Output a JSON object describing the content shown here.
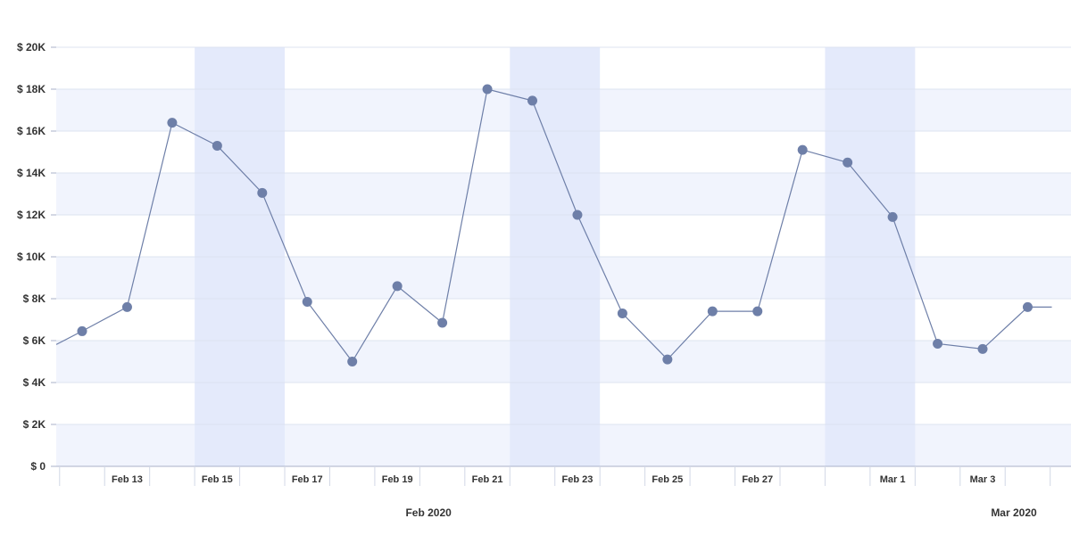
{
  "chart_data": {
    "type": "line",
    "title": "",
    "xlabel": "",
    "ylabel": "",
    "ylim": [
      0,
      20000
    ],
    "y_ticks": [
      0,
      2000,
      4000,
      6000,
      8000,
      10000,
      12000,
      14000,
      16000,
      18000,
      20000
    ],
    "y_tick_labels": [
      "$ 0",
      "$ 2K",
      "$ 4K",
      "$ 6K",
      "$ 8K",
      "$ 10K",
      "$ 12K",
      "$ 14K",
      "$ 16K",
      "$ 18K",
      "$ 20K"
    ],
    "x_range": [
      "2020-02-11",
      "2020-03-05"
    ],
    "x_tick_labels": [
      {
        "date": "2020-02-13",
        "label": "Feb 13"
      },
      {
        "date": "2020-02-15",
        "label": "Feb 15"
      },
      {
        "date": "2020-02-17",
        "label": "Feb 17"
      },
      {
        "date": "2020-02-19",
        "label": "Feb 19"
      },
      {
        "date": "2020-02-21",
        "label": "Feb 21"
      },
      {
        "date": "2020-02-23",
        "label": "Feb 23"
      },
      {
        "date": "2020-02-25",
        "label": "Feb 25"
      },
      {
        "date": "2020-02-27",
        "label": "Feb 27"
      },
      {
        "date": "2020-03-01",
        "label": "Mar 1"
      },
      {
        "date": "2020-03-03",
        "label": "Mar 3"
      }
    ],
    "month_labels": [
      {
        "date": "2020-02-19",
        "label": "Feb 2020"
      },
      {
        "date": "2020-03-03",
        "label": "Mar 2020"
      }
    ],
    "weekend_bands": [
      [
        "2020-02-15",
        "2020-02-17"
      ],
      [
        "2020-02-22",
        "2020-02-24"
      ],
      [
        "2020-02-29",
        "2020-03-02"
      ]
    ],
    "grid": true,
    "series": [
      {
        "color": "#6e7fa8",
        "points": [
          {
            "x": "2020-02-12",
            "y": 6450
          },
          {
            "x": "2020-02-13",
            "y": 7600
          },
          {
            "x": "2020-02-14",
            "y": 16400
          },
          {
            "x": "2020-02-15",
            "y": 15300
          },
          {
            "x": "2020-02-16",
            "y": 13050
          },
          {
            "x": "2020-02-17",
            "y": 7850
          },
          {
            "x": "2020-02-18",
            "y": 5000
          },
          {
            "x": "2020-02-19",
            "y": 8600
          },
          {
            "x": "2020-02-20",
            "y": 6850
          },
          {
            "x": "2020-02-21",
            "y": 18000
          },
          {
            "x": "2020-02-22",
            "y": 17450
          },
          {
            "x": "2020-02-23",
            "y": 12000
          },
          {
            "x": "2020-02-24",
            "y": 7300
          },
          {
            "x": "2020-02-25",
            "y": 5100
          },
          {
            "x": "2020-02-26",
            "y": 7400
          },
          {
            "x": "2020-02-27",
            "y": 7400
          },
          {
            "x": "2020-02-28",
            "y": 15100
          },
          {
            "x": "2020-02-29",
            "y": 14500
          },
          {
            "x": "2020-03-01",
            "y": 11900
          },
          {
            "x": "2020-03-02",
            "y": 5850
          },
          {
            "x": "2020-03-03",
            "y": 5600
          },
          {
            "x": "2020-03-04",
            "y": 7600
          }
        ]
      }
    ]
  },
  "colors": {
    "band_light": "#f1f4fd",
    "band_weekend": "#e4eafb",
    "grid": "#dde3f0",
    "axis": "#aab2c8",
    "marker": "#6e7fa8"
  }
}
